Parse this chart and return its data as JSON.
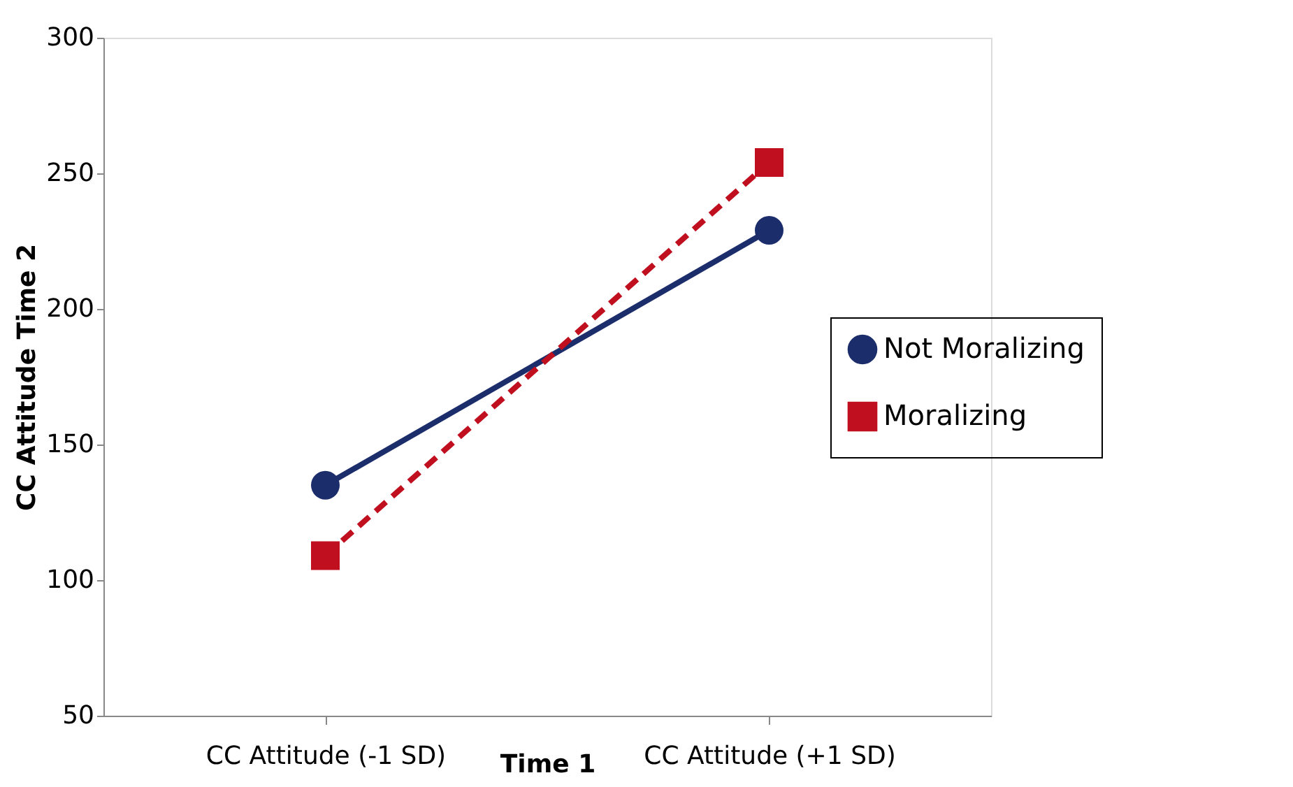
{
  "chart_data": {
    "type": "line",
    "xlabel": "Time 1",
    "ylabel": "CC Attitude Time 2",
    "categories": [
      "CC Attitude (-1 SD)",
      "CC Attitude (+1 SD)"
    ],
    "series": [
      {
        "name": "Not Moralizing",
        "color": "#1c2d6b",
        "values": [
          135,
          229
        ],
        "marker": "circle",
        "line_style": "solid"
      },
      {
        "name": "Moralizing",
        "color": "#c00f1e",
        "values": [
          109,
          254
        ],
        "marker": "square",
        "line_style": "dashed"
      }
    ],
    "ylim": [
      50,
      300
    ],
    "yticks": [
      50,
      100,
      150,
      200,
      250,
      300
    ],
    "grid": false,
    "legend": "right"
  }
}
